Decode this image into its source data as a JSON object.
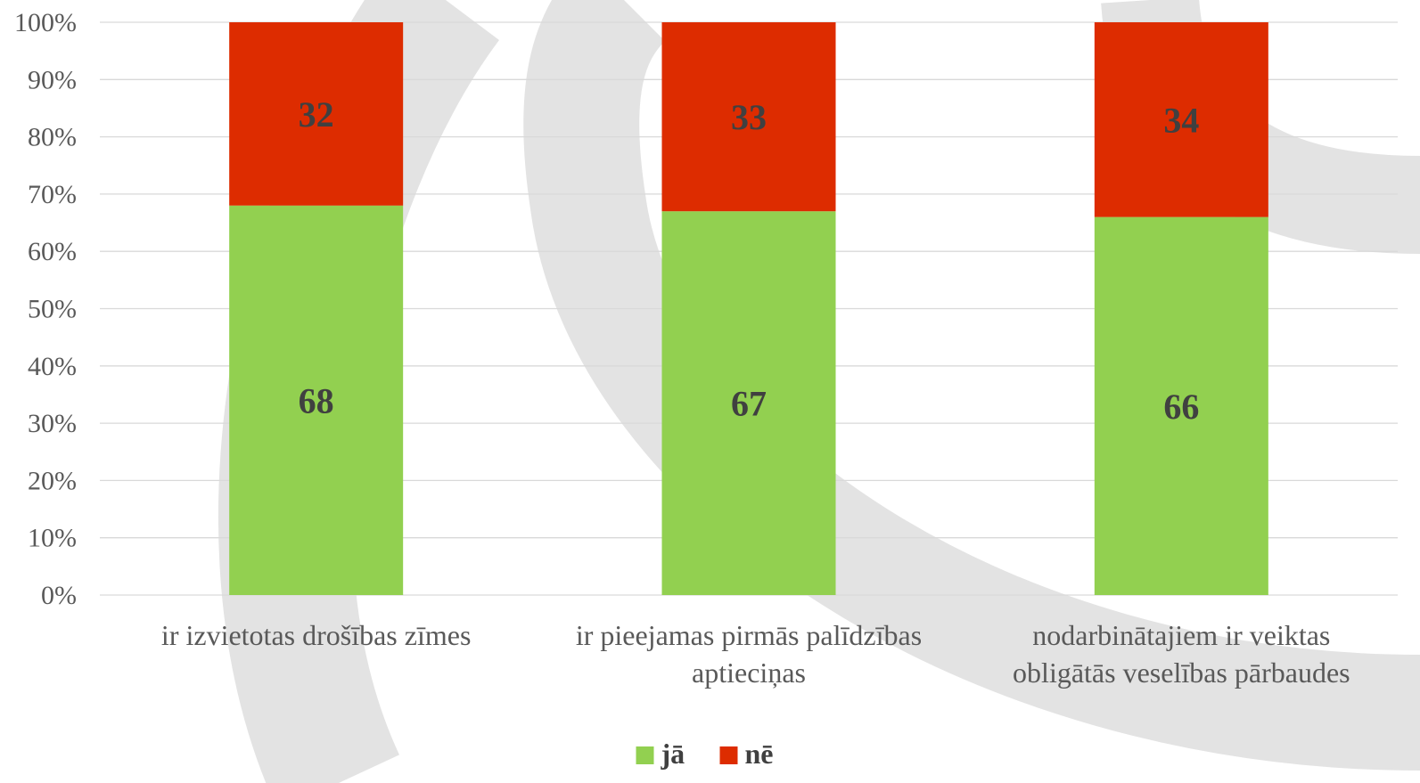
{
  "chart_data": {
    "type": "bar",
    "stacked": true,
    "percent_stacked": true,
    "categories": [
      [
        "ir izvietotas drošības zīmes"
      ],
      [
        "ir pieejamas pirmās palīdzības",
        "aptieciņas"
      ],
      [
        "nodarbinātajiem ir veiktas",
        "obligātās veselības pārbaudes"
      ]
    ],
    "series": [
      {
        "name": "jā",
        "values": [
          68,
          67,
          66
        ],
        "color": "#92d050"
      },
      {
        "name": "nē",
        "values": [
          32,
          33,
          34
        ],
        "color": "#dd2c00"
      }
    ],
    "yticks": [
      "0%",
      "10%",
      "20%",
      "30%",
      "40%",
      "50%",
      "60%",
      "70%",
      "80%",
      "90%",
      "100%"
    ],
    "ylim": [
      0,
      100
    ],
    "grid": true,
    "legend": "bottom-center",
    "title": "",
    "xlabel": "",
    "ylabel": ""
  },
  "colors": {
    "gridline": "#d9d9d9",
    "watermark": "#e3e3e3"
  }
}
